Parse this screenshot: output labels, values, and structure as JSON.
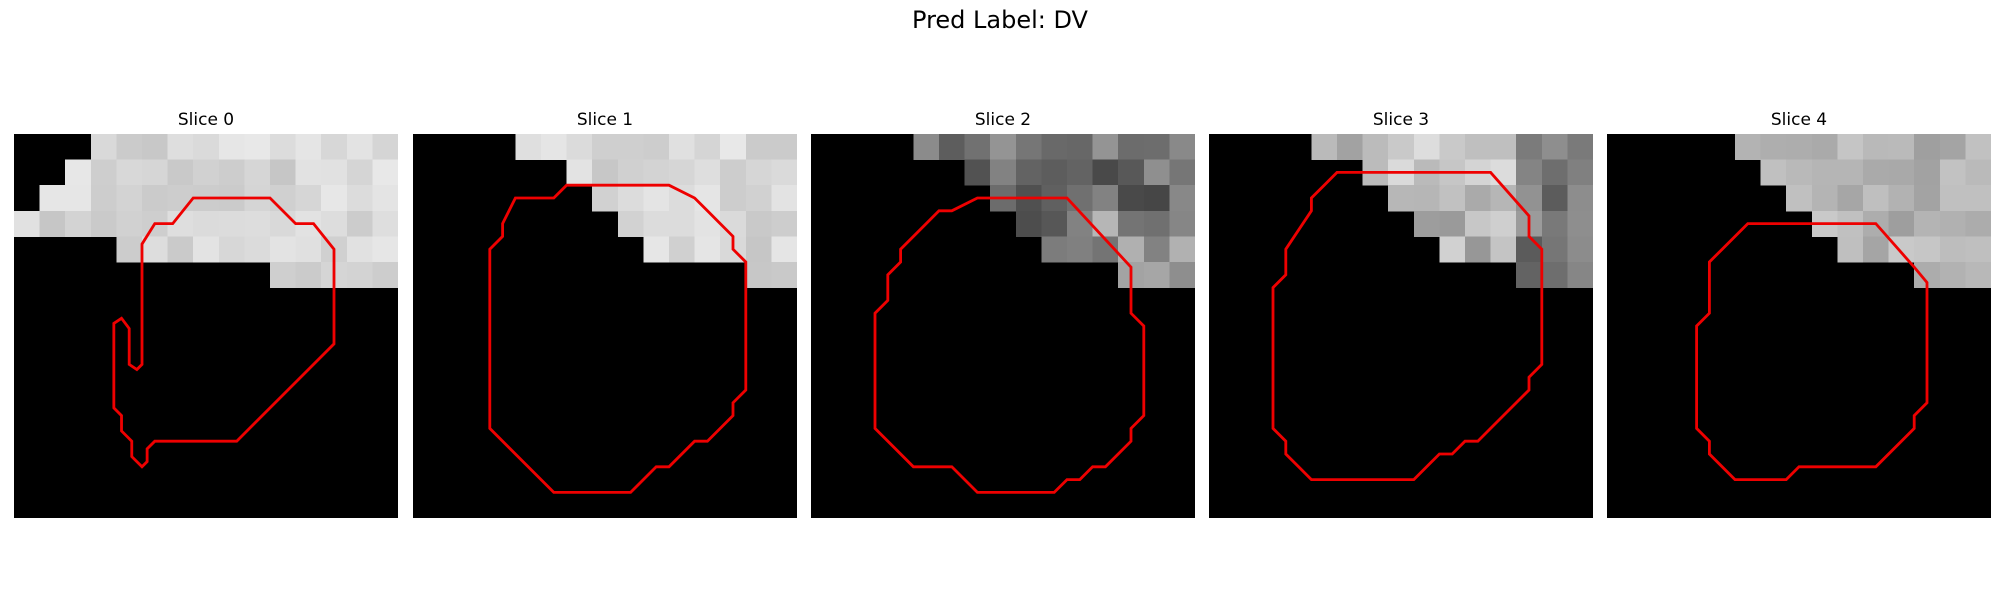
{
  "figure": {
    "title": "Pred Label: DV"
  },
  "colors": {
    "contour": "#ee0000",
    "background": "#000000"
  },
  "panels": [
    {
      "title": "Slice 0",
      "texture": "light",
      "mask": [
        [
          4,
          0
        ],
        [
          15,
          0
        ],
        [
          15,
          6
        ],
        [
          11,
          6
        ],
        [
          10,
          5
        ],
        [
          5,
          5
        ],
        [
          4,
          4
        ],
        [
          0,
          4
        ]
      ],
      "contour": [
        [
          7,
          2.5
        ],
        [
          10,
          2.5
        ],
        [
          11,
          3.5
        ],
        [
          11.7,
          3.5
        ],
        [
          12.5,
          4.5
        ],
        [
          12.5,
          8.2
        ],
        [
          8.7,
          12
        ],
        [
          5.5,
          12
        ],
        [
          5.2,
          12.3
        ],
        [
          5.2,
          12.8
        ],
        [
          5,
          13
        ],
        [
          4.6,
          12.6
        ],
        [
          4.6,
          12
        ],
        [
          4.2,
          11.6
        ],
        [
          4.2,
          11
        ],
        [
          3.9,
          10.7
        ],
        [
          3.9,
          7.4
        ],
        [
          4.2,
          7.2
        ],
        [
          4.5,
          7.6
        ],
        [
          4.5,
          9
        ],
        [
          4.8,
          9.2
        ],
        [
          5,
          9
        ],
        [
          5,
          4.3
        ],
        [
          5.5,
          3.5
        ],
        [
          6.2,
          3.5
        ]
      ]
    },
    {
      "title": "Slice 1",
      "texture": "light",
      "mask": [
        [
          4,
          0
        ],
        [
          15,
          0
        ],
        [
          15,
          6
        ],
        [
          14,
          6
        ],
        [
          13,
          5
        ],
        [
          10,
          5
        ],
        [
          9,
          4
        ],
        [
          7,
          2
        ],
        [
          6,
          1
        ],
        [
          5,
          1
        ],
        [
          4,
          0.5
        ]
      ],
      "contour": [
        [
          4,
          2.5
        ],
        [
          5.5,
          2.5
        ],
        [
          6,
          2
        ],
        [
          10,
          2
        ],
        [
          11,
          2.5
        ],
        [
          11.5,
          3
        ],
        [
          12,
          3.5
        ],
        [
          12.5,
          4
        ],
        [
          12.5,
          4.5
        ],
        [
          13,
          5
        ],
        [
          13,
          5.5
        ],
        [
          13,
          10
        ],
        [
          12.5,
          10.5
        ],
        [
          12.5,
          11
        ],
        [
          11.5,
          12
        ],
        [
          11,
          12
        ],
        [
          10,
          13
        ],
        [
          9.5,
          13
        ],
        [
          8.5,
          14
        ],
        [
          5.5,
          14
        ],
        [
          3,
          11.5
        ],
        [
          3,
          10.5
        ],
        [
          3,
          4.5
        ],
        [
          3.5,
          4
        ],
        [
          3.5,
          3.5
        ]
      ]
    },
    {
      "title": "Slice 2",
      "texture": "dark",
      "mask": [
        [
          4,
          0
        ],
        [
          15,
          0
        ],
        [
          15,
          6
        ],
        [
          13,
          6
        ],
        [
          12,
          5
        ],
        [
          10,
          5
        ],
        [
          9,
          4
        ],
        [
          8,
          3
        ],
        [
          7,
          2
        ],
        [
          6,
          1
        ],
        [
          5,
          1
        ],
        [
          4,
          0.5
        ]
      ],
      "contour": [
        [
          6.5,
          2.5
        ],
        [
          10,
          2.5
        ],
        [
          12.5,
          5.2
        ],
        [
          12.5,
          7
        ],
        [
          13,
          7.5
        ],
        [
          13,
          11
        ],
        [
          12.5,
          11.5
        ],
        [
          12.5,
          12
        ],
        [
          11.5,
          13
        ],
        [
          11,
          13
        ],
        [
          10.5,
          13.5
        ],
        [
          10,
          13.5
        ],
        [
          9.5,
          14
        ],
        [
          6.5,
          14
        ],
        [
          5.5,
          13
        ],
        [
          4,
          13
        ],
        [
          2.5,
          11.5
        ],
        [
          2.5,
          7
        ],
        [
          3,
          6.5
        ],
        [
          3,
          5.5
        ],
        [
          3.5,
          5
        ],
        [
          3.5,
          4.5
        ],
        [
          4.5,
          3.5
        ],
        [
          5,
          3
        ],
        [
          5.5,
          3
        ]
      ]
    },
    {
      "title": "Slice 3",
      "texture": "mixed",
      "mask": [
        [
          4,
          0
        ],
        [
          15,
          0
        ],
        [
          15,
          6
        ],
        [
          13,
          6
        ],
        [
          12,
          5
        ],
        [
          10,
          5
        ],
        [
          9,
          4
        ],
        [
          8,
          3
        ],
        [
          7,
          2
        ],
        [
          6,
          1
        ],
        [
          5,
          1
        ],
        [
          4,
          0.5
        ]
      ],
      "contour": [
        [
          5.5,
          1.5
        ],
        [
          11,
          1.5
        ],
        [
          12.5,
          3.2
        ],
        [
          12.5,
          4
        ],
        [
          13,
          4.5
        ],
        [
          13,
          9
        ],
        [
          12.5,
          9.5
        ],
        [
          12.5,
          10
        ],
        [
          11,
          11.5
        ],
        [
          10.5,
          12
        ],
        [
          10,
          12
        ],
        [
          9.5,
          12.5
        ],
        [
          9,
          12.5
        ],
        [
          8,
          13.5
        ],
        [
          4,
          13.5
        ],
        [
          3.5,
          13
        ],
        [
          3,
          12.5
        ],
        [
          3,
          12
        ],
        [
          2.5,
          11.5
        ],
        [
          2.5,
          11
        ],
        [
          2.5,
          6
        ],
        [
          3,
          5.5
        ],
        [
          3,
          4.5
        ],
        [
          4,
          3
        ],
        [
          4,
          2.5
        ],
        [
          4.5,
          2
        ],
        [
          5,
          1.5
        ]
      ]
    },
    {
      "title": "Slice 4",
      "texture": "medium",
      "mask": [
        [
          5,
          0
        ],
        [
          15,
          0
        ],
        [
          15,
          6
        ],
        [
          13,
          6
        ],
        [
          12,
          5
        ],
        [
          10,
          5
        ],
        [
          9,
          4
        ],
        [
          8,
          3
        ],
        [
          7,
          2
        ],
        [
          6,
          1
        ],
        [
          5.5,
          0.5
        ]
      ],
      "contour": [
        [
          5.5,
          3.5
        ],
        [
          10.5,
          3.5
        ],
        [
          12,
          5.2
        ],
        [
          12.5,
          5.8
        ],
        [
          12.5,
          10.5
        ],
        [
          12,
          11
        ],
        [
          12,
          11.5
        ],
        [
          10.5,
          13
        ],
        [
          7.5,
          13
        ],
        [
          7,
          13.5
        ],
        [
          5,
          13.5
        ],
        [
          4,
          12.5
        ],
        [
          4,
          12
        ],
        [
          3.5,
          11.5
        ],
        [
          3.5,
          11
        ],
        [
          3.5,
          7.5
        ],
        [
          4,
          7
        ],
        [
          4,
          5
        ],
        [
          4.5,
          4.5
        ]
      ]
    }
  ]
}
